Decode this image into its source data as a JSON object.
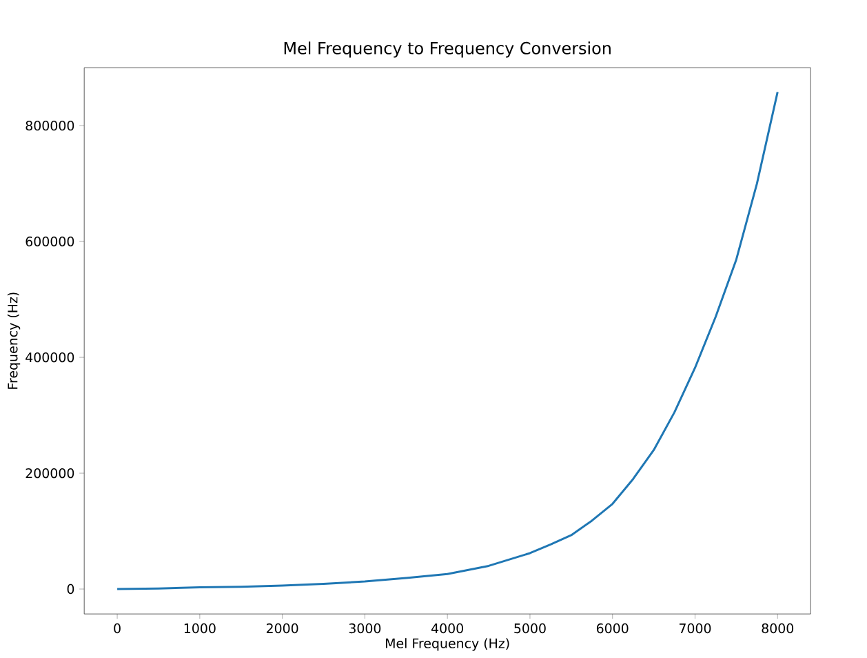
{
  "chart_data": {
    "type": "line",
    "title": "Mel Frequency to Frequency Conversion",
    "xlabel": "Mel Frequency (Hz)",
    "ylabel": "Frequency (Hz)",
    "x": [
      0,
      500,
      1000,
      1500,
      2000,
      2500,
      3000,
      3500,
      4000,
      4500,
      5000,
      5250,
      5500,
      5750,
      6000,
      6250,
      6500,
      6750,
      7000,
      7250,
      7500,
      7750,
      8000
    ],
    "series": [
      {
        "color": "#1f77b4",
        "values": [
          0,
          1000,
          3000,
          4000,
          6000,
          9000,
          13000,
          19000,
          26000,
          40000,
          62000,
          77000,
          93000,
          118000,
          147000,
          190000,
          240000,
          305000,
          382000,
          470000,
          569000,
          700000,
          858000
        ]
      }
    ],
    "xlim": [
      -400,
      8400
    ],
    "ylim": [
      -43000,
      900000
    ],
    "xticks": [
      0,
      1000,
      2000,
      3000,
      4000,
      5000,
      6000,
      7000,
      8000
    ],
    "yticks": [
      0,
      200000,
      400000,
      600000,
      800000
    ],
    "grid": false,
    "marker": "none",
    "line_style": "solid"
  }
}
